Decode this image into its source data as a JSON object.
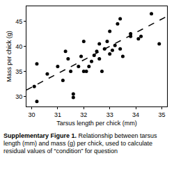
{
  "chart_data": {
    "type": "scatter",
    "x_label": "Tarsus length per chick (mm)",
    "y_label": "Mass per chick (g)",
    "caption_label": "Supplementary Figure 1.",
    "caption": "Relationship between tarsus length (mm) and mass (g) per chick, used to calculate residual values of “condition” for question",
    "xlim": [
      29.8,
      35.2
    ],
    "xticks": [
      30,
      31,
      32,
      33,
      34,
      35
    ],
    "ylim": [
      28,
      48
    ],
    "yticks": [
      30,
      35,
      40,
      45
    ],
    "grid": false,
    "series": [
      {
        "type": "scatter",
        "marker": "circle",
        "color": "#000000",
        "x": [
          30.1,
          30.2,
          30.2,
          30.6,
          31.0,
          31.2,
          31.3,
          31.4,
          31.5,
          31.6,
          31.6,
          31.8,
          31.9,
          32.0,
          32.0,
          32.1,
          32.2,
          32.3,
          32.4,
          32.5,
          32.6,
          32.6,
          32.7,
          32.8,
          32.9,
          33.0,
          33.0,
          33.1,
          33.2,
          33.3,
          33.4,
          33.4,
          33.5,
          33.8,
          33.8,
          34.1,
          34.2,
          34.6,
          34.9
        ],
        "values": [
          32.0,
          29.0,
          36.5,
          34.5,
          36.0,
          33.2,
          39.0,
          37.5,
          35.0,
          30.5,
          29.8,
          36.0,
          38.0,
          35.0,
          41.0,
          35.0,
          36.0,
          37.0,
          38.2,
          39.0,
          37.5,
          40.5,
          35.0,
          39.5,
          41.0,
          43.0,
          38.5,
          39.2,
          40.2,
          44.5,
          45.5,
          39.5,
          38.0,
          42.5,
          42.0,
          41.5,
          42.0,
          46.5,
          40.5
        ]
      },
      {
        "type": "line",
        "line_style": "dashed",
        "color": "#000000",
        "x": [
          29.8,
          35.2
        ],
        "values": [
          31.3,
          46.0
        ]
      }
    ]
  }
}
